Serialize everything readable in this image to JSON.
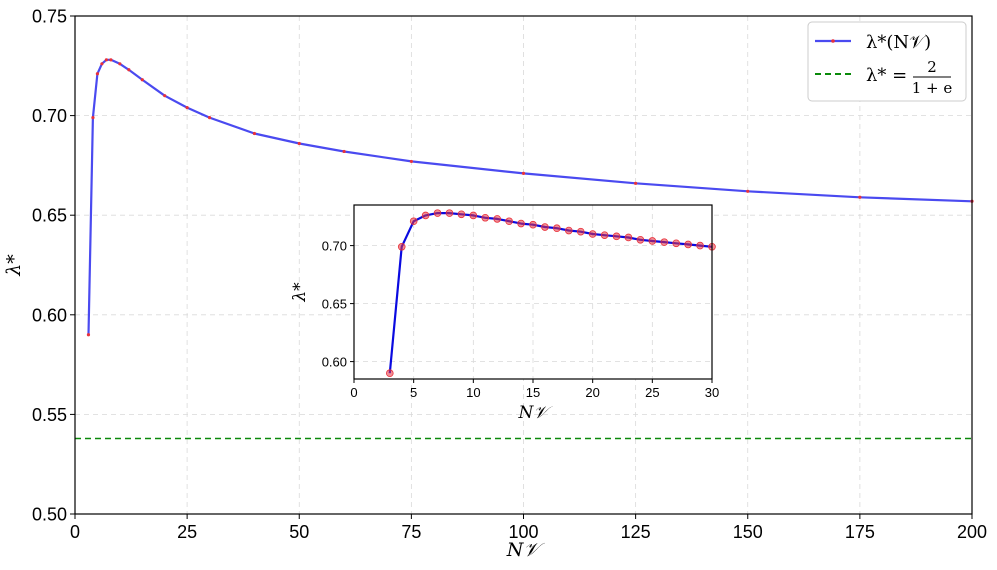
{
  "chart_data": [
    {
      "type": "line",
      "xlabel": "N𝒱",
      "ylabel": "λ*",
      "xlim": [
        0,
        200
      ],
      "ylim": [
        0.5,
        0.75
      ],
      "xticks": [
        0,
        25,
        50,
        75,
        100,
        125,
        150,
        175,
        200
      ],
      "xtick_labels": [
        "0",
        "25",
        "50",
        "75",
        "100",
        "125",
        "150",
        "175",
        "200"
      ],
      "yticks": [
        0.5,
        0.55,
        0.6,
        0.65,
        0.7,
        0.75
      ],
      "ytick_labels": [
        "0.50",
        "0.55",
        "0.60",
        "0.65",
        "0.70",
        "0.75"
      ],
      "grid": true,
      "legend_position": "top-right",
      "series": [
        {
          "name": "λ*(N𝒱)",
          "style": "solid line with small dot markers",
          "color": "#4a4af0",
          "marker_color": "#e8323c",
          "x": [
            3,
            4,
            5,
            6,
            7,
            8,
            10,
            12,
            15,
            20,
            25,
            30,
            40,
            50,
            60,
            75,
            100,
            125,
            150,
            175,
            200
          ],
          "y": [
            0.59,
            0.699,
            0.721,
            0.726,
            0.728,
            0.728,
            0.726,
            0.723,
            0.718,
            0.71,
            0.704,
            0.699,
            0.691,
            0.686,
            0.682,
            0.677,
            0.671,
            0.666,
            0.662,
            0.659,
            0.657
          ]
        },
        {
          "name": "λ* = 2 / (1 + e)",
          "style": "dashed horizontal line",
          "color": "#0a8a0a",
          "y_constant": 0.5379
        }
      ],
      "legend": {
        "entry1": "λ*(N𝒱)",
        "entry2_lhs": "λ* =",
        "entry2_num": "2",
        "entry2_den": "1 + e"
      }
    },
    {
      "type": "line",
      "role": "inset",
      "xlabel": "N𝒱",
      "ylabel": "λ*",
      "xlim": [
        0,
        30
      ],
      "ylim": [
        0.585,
        0.735
      ],
      "xticks": [
        0,
        5,
        10,
        15,
        20,
        25,
        30
      ],
      "xtick_labels": [
        "0",
        "5",
        "10",
        "15",
        "20",
        "25",
        "30"
      ],
      "yticks": [
        0.6,
        0.65,
        0.7
      ],
      "ytick_labels": [
        "0.60",
        "0.65",
        "0.70"
      ],
      "grid": true,
      "series": [
        {
          "name": "λ*(N𝒱)",
          "style": "solid line with circle markers",
          "color": "#0a0ae0",
          "marker_color": "#e8323c",
          "x": [
            3,
            4,
            5,
            6,
            7,
            8,
            9,
            10,
            11,
            12,
            13,
            14,
            15,
            16,
            17,
            18,
            19,
            20,
            21,
            22,
            23,
            24,
            25,
            26,
            27,
            28,
            29,
            30
          ],
          "y": [
            0.59,
            0.699,
            0.721,
            0.726,
            0.728,
            0.728,
            0.727,
            0.726,
            0.724,
            0.723,
            0.721,
            0.719,
            0.718,
            0.716,
            0.715,
            0.713,
            0.712,
            0.71,
            0.709,
            0.708,
            0.707,
            0.705,
            0.704,
            0.703,
            0.702,
            0.701,
            0.7,
            0.699
          ]
        }
      ]
    }
  ]
}
